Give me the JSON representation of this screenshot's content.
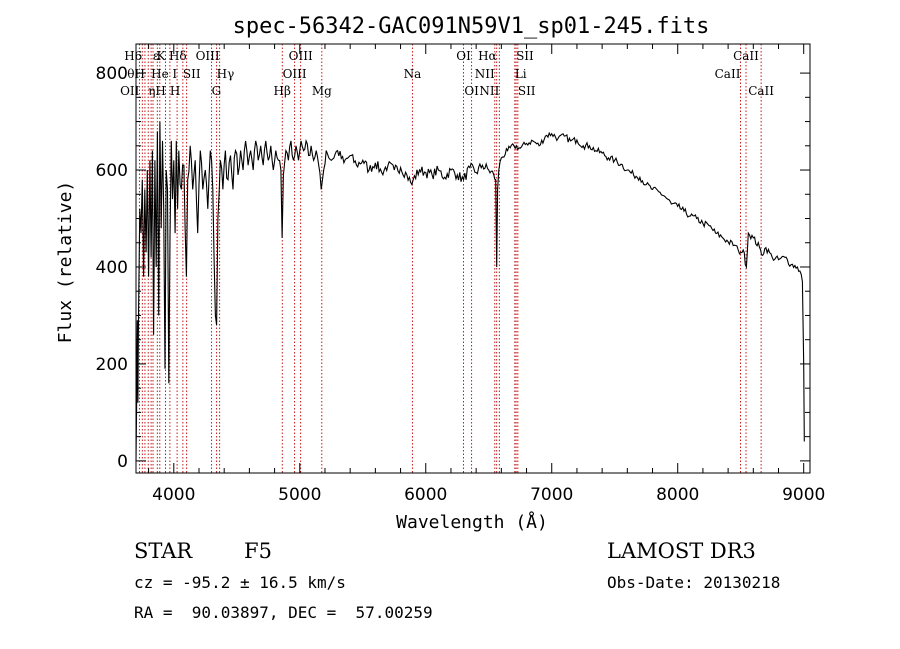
{
  "chart_data": {
    "type": "line",
    "title": "spec-56342-GAC091N59V1_sp01-245.fits",
    "xlabel": "Wavelength (Å)",
    "ylabel": "Flux (relative)",
    "xlim": [
      3700,
      9050
    ],
    "ylim": [
      -25,
      860
    ],
    "xticks": [
      {
        "value": 4000,
        "label": "4000"
      },
      {
        "value": 5000,
        "label": "5000"
      },
      {
        "value": 6000,
        "label": "6000"
      },
      {
        "value": 7000,
        "label": "7000"
      },
      {
        "value": 8000,
        "label": "8000"
      },
      {
        "value": 9000,
        "label": "9000"
      }
    ],
    "yticks": [
      {
        "value": 0,
        "label": "0"
      },
      {
        "value": 200,
        "label": "200"
      },
      {
        "value": 400,
        "label": "400"
      },
      {
        "value": 600,
        "label": "600"
      },
      {
        "value": 800,
        "label": "800"
      }
    ],
    "series": [
      {
        "name": "flux",
        "points": [
          [
            3700,
            0
          ],
          [
            3705,
            110
          ],
          [
            3710,
            290
          ],
          [
            3715,
            120
          ],
          [
            3720,
            300
          ],
          [
            3730,
            520
          ],
          [
            3740,
            470
          ],
          [
            3750,
            580
          ],
          [
            3760,
            380
          ],
          [
            3770,
            560
          ],
          [
            3780,
            430
          ],
          [
            3790,
            600
          ],
          [
            3800,
            380
          ],
          [
            3810,
            620
          ],
          [
            3820,
            420
          ],
          [
            3830,
            640
          ],
          [
            3840,
            260
          ],
          [
            3850,
            620
          ],
          [
            3860,
            400
          ],
          [
            3870,
            680
          ],
          [
            3880,
            300
          ],
          [
            3890,
            700
          ],
          [
            3900,
            480
          ],
          [
            3910,
            660
          ],
          [
            3920,
            520
          ],
          [
            3930,
            190
          ],
          [
            3940,
            600
          ],
          [
            3950,
            560
          ],
          [
            3960,
            160
          ],
          [
            3970,
            460
          ],
          [
            3980,
            660
          ],
          [
            3990,
            540
          ],
          [
            4000,
            620
          ],
          [
            4010,
            470
          ],
          [
            4020,
            660
          ],
          [
            4030,
            520
          ],
          [
            4040,
            640
          ],
          [
            4060,
            560
          ],
          [
            4080,
            610
          ],
          [
            4100,
            380
          ],
          [
            4110,
            580
          ],
          [
            4130,
            650
          ],
          [
            4150,
            560
          ],
          [
            4170,
            620
          ],
          [
            4190,
            470
          ],
          [
            4210,
            640
          ],
          [
            4230,
            560
          ],
          [
            4250,
            600
          ],
          [
            4270,
            520
          ],
          [
            4290,
            640
          ],
          [
            4310,
            560
          ],
          [
            4330,
            300
          ],
          [
            4340,
            280
          ],
          [
            4350,
            500
          ],
          [
            4370,
            620
          ],
          [
            4390,
            560
          ],
          [
            4410,
            640
          ],
          [
            4430,
            580
          ],
          [
            4450,
            630
          ],
          [
            4470,
            560
          ],
          [
            4490,
            640
          ],
          [
            4510,
            590
          ],
          [
            4530,
            640
          ],
          [
            4550,
            600
          ],
          [
            4570,
            660
          ],
          [
            4590,
            610
          ],
          [
            4610,
            640
          ],
          [
            4630,
            600
          ],
          [
            4650,
            660
          ],
          [
            4670,
            620
          ],
          [
            4690,
            650
          ],
          [
            4710,
            610
          ],
          [
            4730,
            660
          ],
          [
            4750,
            620
          ],
          [
            4770,
            650
          ],
          [
            4790,
            600
          ],
          [
            4810,
            640
          ],
          [
            4830,
            620
          ],
          [
            4850,
            600
          ],
          [
            4860,
            460
          ],
          [
            4870,
            590
          ],
          [
            4890,
            640
          ],
          [
            4910,
            620
          ],
          [
            4930,
            660
          ],
          [
            4950,
            620
          ],
          [
            4970,
            650
          ],
          [
            4990,
            620
          ],
          [
            5010,
            660
          ],
          [
            5030,
            640
          ],
          [
            5050,
            660
          ],
          [
            5070,
            630
          ],
          [
            5090,
            650
          ],
          [
            5110,
            620
          ],
          [
            5130,
            640
          ],
          [
            5150,
            610
          ],
          [
            5170,
            560
          ],
          [
            5190,
            600
          ],
          [
            5210,
            640
          ],
          [
            5250,
            620
          ],
          [
            5300,
            640
          ],
          [
            5350,
            615
          ],
          [
            5400,
            630
          ],
          [
            5450,
            610
          ],
          [
            5500,
            620
          ],
          [
            5550,
            600
          ],
          [
            5600,
            615
          ],
          [
            5650,
            595
          ],
          [
            5700,
            610
          ],
          [
            5750,
            600
          ],
          [
            5800,
            605
          ],
          [
            5850,
            590
          ],
          [
            5890,
            570
          ],
          [
            5900,
            580
          ],
          [
            5950,
            600
          ],
          [
            6000,
            595
          ],
          [
            6050,
            590
          ],
          [
            6100,
            600
          ],
          [
            6150,
            585
          ],
          [
            6200,
            600
          ],
          [
            6250,
            590
          ],
          [
            6300,
            580
          ],
          [
            6350,
            605
          ],
          [
            6400,
            595
          ],
          [
            6450,
            610
          ],
          [
            6500,
            600
          ],
          [
            6540,
            590
          ],
          [
            6555,
            580
          ],
          [
            6563,
            400
          ],
          [
            6570,
            560
          ],
          [
            6580,
            600
          ],
          [
            6600,
            625
          ],
          [
            6650,
            640
          ],
          [
            6700,
            650
          ],
          [
            6750,
            645
          ],
          [
            6800,
            655
          ],
          [
            6850,
            660
          ],
          [
            6900,
            650
          ],
          [
            6950,
            670
          ],
          [
            7000,
            675
          ],
          [
            7050,
            665
          ],
          [
            7100,
            670
          ],
          [
            7150,
            660
          ],
          [
            7200,
            662
          ],
          [
            7250,
            650
          ],
          [
            7300,
            650
          ],
          [
            7350,
            640
          ],
          [
            7400,
            635
          ],
          [
            7450,
            625
          ],
          [
            7500,
            620
          ],
          [
            7550,
            612
          ],
          [
            7600,
            600
          ],
          [
            7650,
            590
          ],
          [
            7700,
            585
          ],
          [
            7750,
            570
          ],
          [
            7800,
            560
          ],
          [
            7850,
            555
          ],
          [
            7900,
            545
          ],
          [
            7950,
            530
          ],
          [
            8000,
            525
          ],
          [
            8050,
            515
          ],
          [
            8100,
            505
          ],
          [
            8150,
            500
          ],
          [
            8200,
            490
          ],
          [
            8250,
            485
          ],
          [
            8300,
            470
          ],
          [
            8350,
            462
          ],
          [
            8400,
            452
          ],
          [
            8450,
            445
          ],
          [
            8480,
            435
          ],
          [
            8500,
            430
          ],
          [
            8520,
            435
          ],
          [
            8545,
            400
          ],
          [
            8560,
            470
          ],
          [
            8600,
            460
          ],
          [
            8650,
            440
          ],
          [
            8665,
            425
          ],
          [
            8700,
            440
          ],
          [
            8750,
            420
          ],
          [
            8800,
            415
          ],
          [
            8850,
            420
          ],
          [
            8900,
            405
          ],
          [
            8950,
            400
          ],
          [
            8980,
            385
          ],
          [
            8990,
            370
          ],
          [
            9000,
            200
          ],
          [
            9005,
            40
          ]
        ]
      }
    ],
    "lines": [
      {
        "wave": 3727,
        "label": "OII",
        "row": 3,
        "align": "end"
      },
      {
        "wave": 3750,
        "label": "H6",
        "row": 1,
        "align": "end"
      },
      {
        "wave": 3771,
        "label": "θH",
        "row": 2,
        "align": "end"
      },
      {
        "wave": 3797,
        "label": "ηH",
        "row": 3,
        "align": "start"
      },
      {
        "wave": 3820,
        "label": "He",
        "row": 2,
        "align": "start"
      },
      {
        "wave": 3835,
        "label": "ε",
        "row": 1,
        "align": "start"
      },
      {
        "wave": 3869,
        "label": "",
        "row": 0,
        "align": "start"
      },
      {
        "wave": 3889,
        "label": "",
        "row": 0,
        "align": "start"
      },
      {
        "wave": 3934,
        "label": "K",
        "row": 1,
        "align": "end"
      },
      {
        "wave": 3969,
        "label": "H",
        "row": 3,
        "align": "start"
      },
      {
        "wave": 4026,
        "label": "I",
        "row": 2,
        "align": "end"
      },
      {
        "wave": 4072,
        "label": "SII",
        "row": 2,
        "align": "start"
      },
      {
        "wave": 4102,
        "label": "Hδ",
        "row": 1,
        "align": "end"
      },
      {
        "wave": 4300,
        "label": "G",
        "row": 3,
        "align": "start"
      },
      {
        "wave": 4340,
        "label": "Hγ",
        "row": 2,
        "align": "start"
      },
      {
        "wave": 4364,
        "label": "OIII",
        "row": 1,
        "align": "end"
      },
      {
        "wave": 4861,
        "label": "Hβ",
        "row": 3,
        "align": "middle"
      },
      {
        "wave": 4959,
        "label": "OIII",
        "row": 2,
        "align": "middle"
      },
      {
        "wave": 5007,
        "label": "OIII",
        "row": 1,
        "align": "middle"
      },
      {
        "wave": 5175,
        "label": "Mg",
        "row": 3,
        "align": "middle"
      },
      {
        "wave": 5894,
        "label": "Na",
        "row": 2,
        "align": "middle"
      },
      {
        "wave": 6300,
        "label": "OI",
        "row": 1,
        "align": "middle"
      },
      {
        "wave": 6364,
        "label": "OI",
        "row": 3,
        "align": "middle"
      },
      {
        "wave": 6548,
        "label": "NII",
        "row": 2,
        "align": "end"
      },
      {
        "wave": 6563,
        "label": "Hα",
        "row": 1,
        "align": "end"
      },
      {
        "wave": 6584,
        "label": "NII",
        "row": 3,
        "align": "end"
      },
      {
        "wave": 6707,
        "label": "Li",
        "row": 2,
        "align": "start"
      },
      {
        "wave": 6717,
        "label": "SII",
        "row": 1,
        "align": "start"
      },
      {
        "wave": 6731,
        "label": "SII",
        "row": 3,
        "align": "start"
      },
      {
        "wave": 8498,
        "label": "CaII",
        "row": 2,
        "align": "end"
      },
      {
        "wave": 8542,
        "label": "CaII",
        "row": 1,
        "align": "middle"
      },
      {
        "wave": 8662,
        "label": "CaII",
        "row": 3,
        "align": "middle"
      }
    ]
  },
  "info": {
    "class_label": "STAR",
    "subclass": "F5",
    "survey": "LAMOST DR3",
    "redshift_text": "cz = -95.2 ± 16.5 km/s",
    "obs_date": "Obs-Date: 20130218",
    "coords": "RA =  90.03897, DEC =  57.00259"
  },
  "colors": {
    "line": "#000000",
    "marker": "#c00000"
  }
}
